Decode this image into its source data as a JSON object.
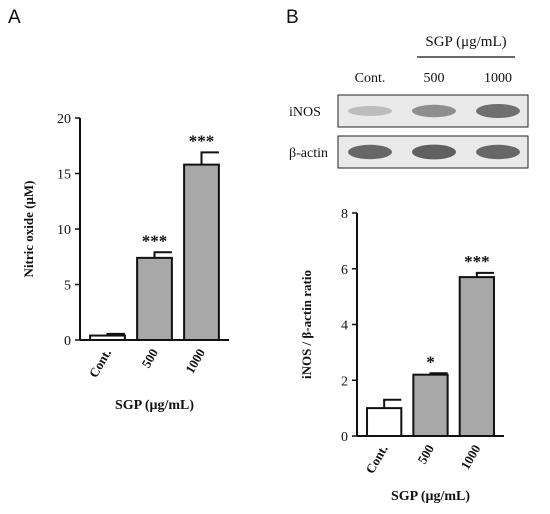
{
  "panels": {
    "a_letter": "A",
    "b_letter": "B"
  },
  "blot": {
    "header": "SGP (μg/mL)",
    "lanes": [
      "Cont.",
      "500",
      "1000"
    ],
    "rows": [
      "iNOS",
      "β-actin"
    ],
    "band_intensity": {
      "iNOS": [
        0.25,
        0.55,
        0.75
      ],
      "β-actin": [
        0.8,
        0.85,
        0.8
      ]
    }
  },
  "chart_data": [
    {
      "type": "bar",
      "categories": [
        "Cont.",
        "500",
        "1000"
      ],
      "values": [
        0.4,
        7.4,
        15.8
      ],
      "errors": [
        0.15,
        0.5,
        1.1
      ],
      "bar_colors": [
        "#ffffff",
        "#a8a8a8",
        "#a8a8a8"
      ],
      "significance": [
        "",
        "***",
        "***"
      ],
      "ylabel": "Nitric oxide (μM)",
      "xlabel": "SGP (μg/mL)",
      "ylim": [
        0,
        20
      ],
      "yticks": [
        0,
        5,
        10,
        15,
        20
      ],
      "grid": false
    },
    {
      "type": "bar",
      "categories": [
        "Cont.",
        "500",
        "1000"
      ],
      "values": [
        1.0,
        2.2,
        5.7
      ],
      "errors": [
        0.3,
        0.05,
        0.15
      ],
      "bar_colors": [
        "#ffffff",
        "#a8a8a8",
        "#a8a8a8"
      ],
      "significance": [
        "",
        "*",
        "***"
      ],
      "ylabel": "iNOS / β-actin ratio",
      "xlabel": "SGP (μg/mL)",
      "ylim": [
        0,
        8
      ],
      "yticks": [
        0,
        2,
        4,
        6,
        8
      ],
      "grid": false
    }
  ]
}
